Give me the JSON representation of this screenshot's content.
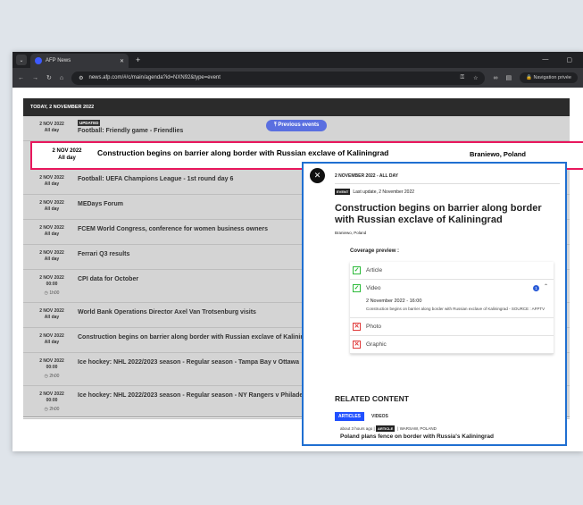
{
  "browser": {
    "tab_title": "AFP News",
    "url": "news.afp.com/#/c/main/agenda?id=NXN92&type=event",
    "private_label": "Navigation privée"
  },
  "agenda": {
    "header": "TODAY, 2 NOVEMBER 2022",
    "previous_events_label": "Previous events",
    "updated_badge": "UPDATED",
    "rows": [
      {
        "date": "2 NOV 2022",
        "time": "All day",
        "title": "Football: Friendly game - Friendlies",
        "updated": true
      },
      {
        "date": "2 NOV 2022",
        "time": "All day",
        "title": "Football: UEFA Champions League - 1st round day 6"
      },
      {
        "date": "2 NOV 2022",
        "time": "All day",
        "title": "MEDays Forum"
      },
      {
        "date": "2 NOV 2022",
        "time": "All day",
        "title": "FCEM World Congress, conference for women business owners"
      },
      {
        "date": "2 NOV 2022",
        "time": "All day",
        "title": "Ferrari Q3 results"
      },
      {
        "date": "2 NOV 2022",
        "time": "00:00",
        "duration": "1h00",
        "title": "CPI data for October"
      },
      {
        "date": "2 NOV 2022",
        "time": "All day",
        "title": "World Bank Operations Director Axel Van Trotsenburg visits"
      },
      {
        "date": "2 NOV 2022",
        "time": "All day",
        "title": "Construction begins on barrier along border with Russian exclave of Kaliningrad"
      },
      {
        "date": "2 NOV 2022",
        "time": "00:00",
        "duration": "2h00",
        "title": "Ice hockey: NHL 2022/2023 season - Regular season - Tampa Bay v Ottawa"
      },
      {
        "date": "2 NOV 2022",
        "time": "00:00",
        "duration": "2h00",
        "title": "Ice hockey: NHL 2022/2023 season - Regular season - NY Rangers v Philadelphia"
      }
    ],
    "highlighted": {
      "date": "2 NOV 2022",
      "time": "All day",
      "title": "Construction begins on barrier along border with Russian exclave of Kaliningrad",
      "location": "Braniewo, Poland"
    }
  },
  "detail": {
    "date": "2 NOVEMBER 2022 - ALL DAY",
    "type_badge": "EVENT",
    "last_update": "Last update, 2 November 2022",
    "title": "Construction begins on barrier along border with Russian exclave of Kaliningrad",
    "location": "Braniewo, Poland",
    "coverage_label": "Coverage preview :",
    "coverage": [
      {
        "label": "Article",
        "status": "available"
      },
      {
        "label": "Video",
        "status": "available",
        "count": "1",
        "item_date": "2 November 2022 - 16:00",
        "item_text": "Construction begins on barrier along border with Russian exclave of Kaliningrad - SOURCE : AFPTV"
      },
      {
        "label": "Photo",
        "status": "unavailable"
      },
      {
        "label": "Graphic",
        "status": "unavailable"
      }
    ],
    "related_title": "RELATED CONTENT",
    "related_tabs": [
      "ARTICLES",
      "VIDEOS"
    ],
    "related_item": {
      "age": "about 3 hours ago",
      "type": "ARTICLE",
      "location": "WARSAW, POLAND",
      "title": "Poland plans fence on border with Russia's Kaliningrad"
    }
  },
  "colors": {
    "highlight_border": "#e8175d",
    "popup_border": "#1f6fd1",
    "accent": "#2050ff"
  }
}
